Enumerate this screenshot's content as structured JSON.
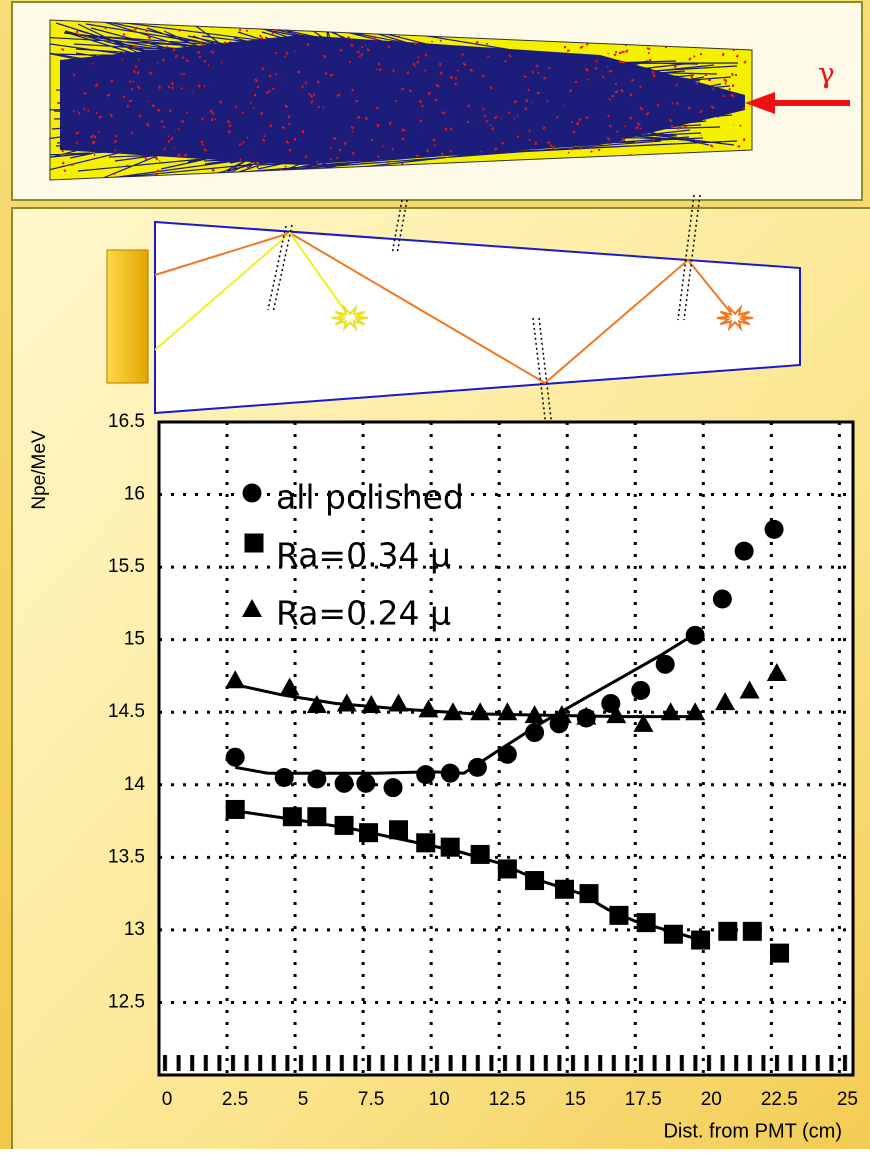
{
  "top_panel": {
    "gamma_label": "γ"
  },
  "chart_data": {
    "type": "scatter",
    "y_label": "Npe/MeV",
    "x_label": "Dist. from PMT (cm)",
    "xlim": [
      0,
      25.5
    ],
    "ylim": [
      12,
      16.5
    ],
    "xticks": [
      0,
      2.5,
      5,
      7.5,
      10,
      12.5,
      15,
      17.5,
      20,
      22.5,
      25
    ],
    "yticks": [
      12.5,
      13,
      13.5,
      14,
      14.5,
      15,
      15.5,
      16,
      16.5
    ],
    "grid": true,
    "series": [
      {
        "name": "all polished",
        "marker": "circle",
        "color": "#000000",
        "x": [
          2.8,
          4.6,
          5.8,
          6.8,
          7.6,
          8.6,
          9.8,
          10.7,
          11.7,
          12.8,
          13.8,
          14.7,
          15.7,
          16.6,
          17.7,
          18.6,
          19.7,
          20.7,
          21.5,
          22.6
        ],
        "values": [
          14.19,
          14.05,
          14.04,
          14.01,
          14.01,
          13.98,
          14.07,
          14.08,
          14.12,
          14.21,
          14.36,
          14.42,
          14.46,
          14.56,
          14.65,
          14.83,
          15.03,
          15.28,
          15.61,
          15.76
        ],
        "fit": {
          "x": [
            2.8,
            4,
            6,
            8,
            10,
            11.2,
            12.5,
            14,
            15.5,
            17,
            18.5,
            19.7
          ],
          "values": [
            14.12,
            14.08,
            14.08,
            14.08,
            14.09,
            14.08,
            14.24,
            14.42,
            14.58,
            14.74,
            14.9,
            15.04
          ]
        }
      },
      {
        "name": "Ra=0.34 μ",
        "marker": "square",
        "color": "#000000",
        "x": [
          2.8,
          4.9,
          5.8,
          6.8,
          7.7,
          8.8,
          9.8,
          10.7,
          11.8,
          12.8,
          13.8,
          14.9,
          15.8,
          16.9,
          17.9,
          18.9,
          19.9,
          20.9,
          21.8,
          22.8
        ],
        "values": [
          13.83,
          13.78,
          13.78,
          13.72,
          13.67,
          13.69,
          13.6,
          13.57,
          13.52,
          13.42,
          13.34,
          13.28,
          13.25,
          13.1,
          13.05,
          12.97,
          12.93,
          12.99,
          12.99,
          12.84
        ],
        "fit": {
          "x": [
            2.8,
            5,
            7,
            9,
            11,
            12.5,
            14,
            15.5,
            16.5,
            17.5,
            19,
            19.9
          ],
          "values": [
            13.82,
            13.76,
            13.7,
            13.62,
            13.54,
            13.46,
            13.34,
            13.25,
            13.14,
            13.06,
            12.98,
            12.93
          ]
        }
      },
      {
        "name": "Ra=0.24 μ",
        "marker": "triangle",
        "color": "#000000",
        "x": [
          2.8,
          4.8,
          5.8,
          6.9,
          7.8,
          8.8,
          9.9,
          10.8,
          11.8,
          12.8,
          13.8,
          14.8,
          15.7,
          16.8,
          17.8,
          18.8,
          19.7,
          20.8,
          21.7,
          22.7
        ],
        "values": [
          14.72,
          14.67,
          14.55,
          14.56,
          14.55,
          14.56,
          14.52,
          14.5,
          14.5,
          14.5,
          14.48,
          14.48,
          14.47,
          14.48,
          14.42,
          14.5,
          14.5,
          14.57,
          14.65,
          14.77
        ],
        "fit": {
          "x": [
            2.8,
            4.5,
            6.5,
            9,
            11.5,
            14,
            17,
            19.8
          ],
          "values": [
            14.69,
            14.62,
            14.56,
            14.52,
            14.49,
            14.48,
            14.47,
            14.47
          ]
        }
      }
    ]
  }
}
